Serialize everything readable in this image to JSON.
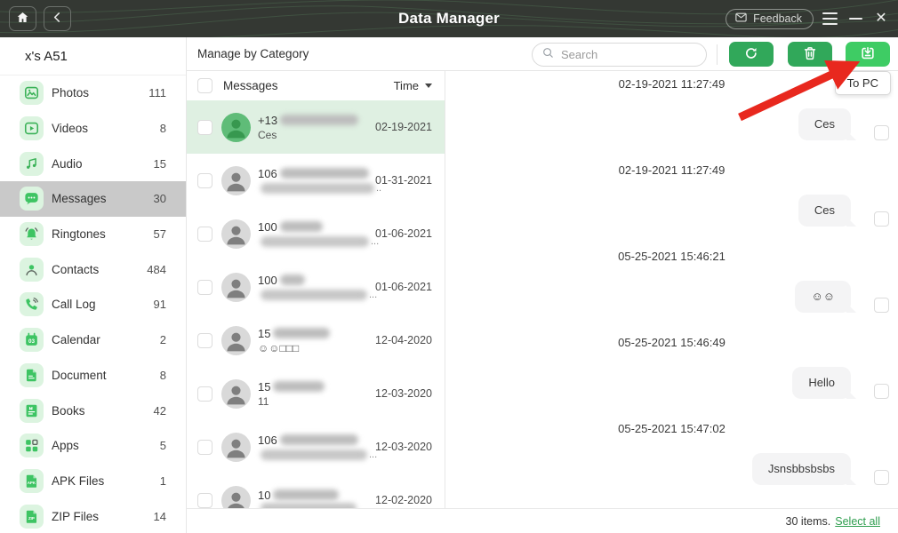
{
  "colors": {
    "accent": "#3bb258",
    "accent_bright": "#3ec463",
    "icon_bg": "#dcf4e0",
    "button_green": "#31a85a",
    "button_bright_green": "#3ecc64",
    "link_green": "#2f9e4f",
    "selected_row_green": "#dff0e2",
    "sidebar_selected_gray": "#c9c9c9",
    "annotation_arrow_red": "#e8281e",
    "titlebar_bg": "#343833"
  },
  "titlebar": {
    "title": "Data Manager",
    "feedback_label": "Feedback"
  },
  "sidebar": {
    "device_name": "x's A51",
    "items": [
      {
        "key": "photos",
        "icon": "photos-icon",
        "label": "Photos",
        "count": "111"
      },
      {
        "key": "videos",
        "icon": "videos-icon",
        "label": "Videos",
        "count": "8"
      },
      {
        "key": "audio",
        "icon": "audio-icon",
        "label": "Audio",
        "count": "15"
      },
      {
        "key": "messages",
        "icon": "messages-icon",
        "label": "Messages",
        "count": "30",
        "selected": true
      },
      {
        "key": "ringtones",
        "icon": "ringtones-icon",
        "label": "Ringtones",
        "count": "57"
      },
      {
        "key": "contacts",
        "icon": "contacts-icon",
        "label": "Contacts",
        "count": "484"
      },
      {
        "key": "call-log",
        "icon": "call-log-icon",
        "label": "Call Log",
        "count": "91"
      },
      {
        "key": "calendar",
        "icon": "calendar-icon",
        "label": "Calendar",
        "count": "2"
      },
      {
        "key": "document",
        "icon": "document-icon",
        "label": "Document",
        "count": "8"
      },
      {
        "key": "books",
        "icon": "books-icon",
        "label": "Books",
        "count": "42"
      },
      {
        "key": "apps",
        "icon": "apps-icon",
        "label": "Apps",
        "count": "5"
      },
      {
        "key": "apk-files",
        "icon": "apk-file-icon",
        "label": "APK Files",
        "count": "1"
      },
      {
        "key": "zip-files",
        "icon": "zip-file-icon",
        "label": "ZIP Files",
        "count": "14"
      }
    ]
  },
  "header": {
    "title": "Manage by Category",
    "search_placeholder": "Search",
    "tooltip": "To PC"
  },
  "list": {
    "title": "Messages",
    "sort_label": "Time",
    "rows": [
      {
        "prefix": "+13",
        "hidden1": 88,
        "line2": "Ces",
        "hidden2": 0,
        "suffix": "",
        "date": "02-19-2021",
        "selected": true
      },
      {
        "prefix": "106",
        "hidden1": 100,
        "line2": "",
        "hidden2": 128,
        "suffix": "..",
        "date": "01-31-2021"
      },
      {
        "prefix": "100",
        "hidden1": 48,
        "line2": "",
        "hidden2": 122,
        "suffix": "...",
        "date": "01-06-2021"
      },
      {
        "prefix": "100",
        "hidden1": 28,
        "line2": "",
        "hidden2": 120,
        "suffix": "...",
        "date": "01-06-2021"
      },
      {
        "prefix": "15",
        "hidden1": 64,
        "line2": "☺☺□□□",
        "hidden2": 0,
        "suffix": "",
        "date": "12-04-2020"
      },
      {
        "prefix": "15",
        "hidden1": 58,
        "line2": "11",
        "hidden2": 0,
        "suffix": "",
        "date": "12-03-2020"
      },
      {
        "prefix": "106",
        "hidden1": 88,
        "line2": "",
        "hidden2": 120,
        "suffix": "...",
        "date": "12-03-2020"
      },
      {
        "prefix": "10",
        "hidden1": 74,
        "line2": "",
        "hidden2": 108,
        "suffix": "",
        "date": "12-02-2020"
      }
    ]
  },
  "conversation": {
    "groups": [
      {
        "time": "02-19-2021 11:27:49",
        "message": "Ces"
      },
      {
        "time": "02-19-2021 11:27:49",
        "message": "Ces"
      },
      {
        "time": "05-25-2021 15:46:21",
        "message": "☺☺"
      },
      {
        "time": "05-25-2021 15:46:49",
        "message": "Hello"
      },
      {
        "time": "05-25-2021 15:47:02",
        "message": "Jsnsbbsbsbs"
      }
    ]
  },
  "footer": {
    "count_text": "30 items.",
    "select_all_label": "Select all"
  }
}
